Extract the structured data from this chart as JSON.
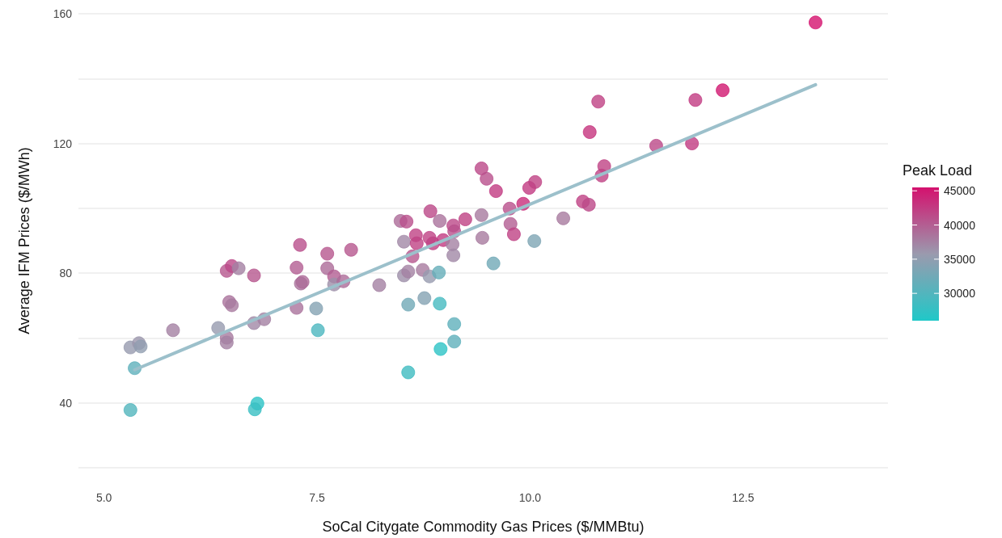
{
  "chart_data": {
    "type": "scatter",
    "xlabel": "SoCal Citygate Commodity Gas Prices ($/MMBtu)",
    "ylabel": "Average IFM Prices ($/MWh)",
    "clabel": "Peak Load",
    "marker": "circle",
    "grid": "y",
    "xlim": [
      4.7,
      14.2
    ],
    "ylim": [
      20,
      160
    ],
    "xticks": [
      {
        "value": 5,
        "label": "5.0"
      },
      {
        "value": 7.5,
        "label": "7.5"
      },
      {
        "value": 10,
        "label": "10.0"
      },
      {
        "value": 12.5,
        "label": "12.5"
      }
    ],
    "yticks": [
      {
        "value": 20,
        "label": null
      },
      40,
      {
        "value": 60,
        "label": null
      },
      80,
      {
        "value": 100,
        "label": null
      },
      120,
      {
        "value": 140,
        "label": null
      },
      160
    ],
    "clim": [
      26000,
      45500
    ],
    "cticks": [
      30000,
      35000,
      40000,
      45000
    ],
    "series": [
      {
        "x": [
          5.31,
          5.41,
          5.43,
          5.36,
          5.31,
          5.81,
          6.34,
          6.44,
          6.44,
          6.44,
          6.5,
          6.58,
          6.47,
          6.5,
          6.76,
          6.76,
          6.88,
          6.8,
          6.77,
          7.26,
          7.26,
          7.3,
          7.31,
          7.33,
          7.49,
          7.51,
          7.62,
          7.62,
          7.7,
          7.7,
          7.81,
          7.9,
          8.23,
          9.43,
          9.49,
          9.6,
          9.99,
          10.06,
          10.87,
          10.84,
          10.62,
          10.69,
          9.92,
          9.76,
          9.77,
          9.81,
          10.39,
          10.05,
          9.43,
          9.44,
          9.57,
          9.24,
          9.1,
          9.11,
          8.83,
          8.94,
          8.48,
          8.55,
          8.52,
          8.66,
          8.67,
          8.82,
          8.86,
          8.98,
          9.09,
          9.1,
          8.62,
          8.52,
          8.57,
          8.74,
          8.82,
          8.93,
          8.57,
          8.76,
          8.94,
          9.11,
          9.11,
          8.95,
          8.57,
          13.35,
          12.26,
          11.94,
          10.8,
          10.7,
          11.48,
          11.9
        ],
        "values": [
          57.1,
          58.4,
          57.4,
          50.7,
          37.8,
          62.4,
          63.1,
          60.1,
          58.6,
          80.7,
          82.2,
          81.5,
          71.1,
          70.1,
          79.3,
          64.6,
          65.8,
          39.8,
          38.0,
          69.3,
          81.7,
          88.7,
          76.8,
          77.3,
          69.1,
          62.4,
          81.5,
          86.0,
          79.0,
          76.5,
          77.5,
          87.2,
          76.3,
          112.3,
          109.1,
          105.3,
          106.3,
          108.1,
          113.0,
          110.1,
          102.1,
          101.1,
          101.4,
          99.9,
          95.2,
          92.0,
          96.9,
          89.9,
          97.9,
          90.9,
          83.0,
          96.6,
          94.7,
          92.9,
          99.1,
          96.1,
          96.1,
          95.9,
          89.7,
          91.7,
          89.2,
          90.9,
          89.2,
          90.2,
          88.9,
          85.5,
          85.2,
          79.3,
          80.5,
          81.0,
          79.0,
          80.2,
          70.3,
          72.3,
          70.6,
          64.3,
          58.9,
          56.6,
          49.4,
          157.3,
          136.4,
          133.4,
          132.9,
          123.5,
          119.3,
          120.0
        ],
        "cvalues": [
          35500,
          36000,
          35000,
          31000,
          30000,
          37500,
          35500,
          38000,
          37500,
          40500,
          41500,
          37500,
          38500,
          38000,
          40500,
          37000,
          37500,
          27000,
          28000,
          38500,
          40000,
          41000,
          38500,
          39000,
          34000,
          29500,
          39000,
          40500,
          40000,
          36500,
          39000,
          40500,
          37500,
          41500,
          41000,
          42500,
          42500,
          42000,
          42000,
          42000,
          42000,
          41500,
          43500,
          41000,
          40000,
          42000,
          38000,
          33500,
          38000,
          38000,
          32500,
          42000,
          41500,
          41000,
          41500,
          38500,
          39000,
          41000,
          37000,
          42000,
          42000,
          42000,
          42000,
          42500,
          37500,
          37000,
          40500,
          36500,
          37500,
          38000,
          35500,
          31500,
          32500,
          34000,
          29000,
          31000,
          31000,
          27000,
          28500,
          45500,
          45000,
          42500,
          42000,
          43000,
          41500,
          42500
        ],
        "colors": [
          "#979baf",
          "#9c97ac",
          "#919eb0",
          "#5fb0bb",
          "#52b5bd",
          "#a481a3",
          "#979baf",
          "#a77a9f",
          "#a481a3",
          "#b6578f",
          "#bc4988",
          "#a481a3",
          "#aa739c",
          "#a77a9f",
          "#b6578f",
          "#a188a6",
          "#a481a3",
          "#2dc3c5",
          "#39bfc3",
          "#aa739c",
          "#b35e92",
          "#b9508c",
          "#aa739c",
          "#ad6c99",
          "#84a2b3",
          "#4cb8bf",
          "#ad6c99",
          "#b6578f",
          "#b35e92",
          "#9e90a9",
          "#ad6c99",
          "#b6578f",
          "#a481a3",
          "#bc4988",
          "#b9508c",
          "#c23b82",
          "#c23b82",
          "#bf4285",
          "#bf4285",
          "#bf4285",
          "#bf4285",
          "#bc4988",
          "#c82d7b",
          "#b9508c",
          "#b35e92",
          "#bf4285",
          "#a77a9f",
          "#7ea5b4",
          "#a77a9f",
          "#a77a9f",
          "#71a9b7",
          "#bf4285",
          "#bc4988",
          "#b9508c",
          "#bc4988",
          "#aa739c",
          "#ad6c99",
          "#b9508c",
          "#a188a6",
          "#bf4285",
          "#bf4285",
          "#bf4285",
          "#bf4285",
          "#c23b82",
          "#a481a3",
          "#a188a6",
          "#b6578f",
          "#9e90a9",
          "#a481a3",
          "#a77a9f",
          "#979baf",
          "#65aeb9",
          "#71a9b7",
          "#84a2b3",
          "#46bac0",
          "#5fb0bb",
          "#5fb0bb",
          "#2dc3c5",
          "#3fbcc1",
          "#d4116e",
          "#d11871",
          "#c23b82",
          "#bf4285",
          "#c5347e",
          "#bc4988",
          "#c23b82"
        ]
      },
      {
        "type": "line",
        "x": [
          5.36,
          13.35
        ],
        "values": [
          50.2,
          138.1
        ],
        "color": "#9cc0cb",
        "marker": "none",
        "line_style": "solid"
      }
    ]
  }
}
